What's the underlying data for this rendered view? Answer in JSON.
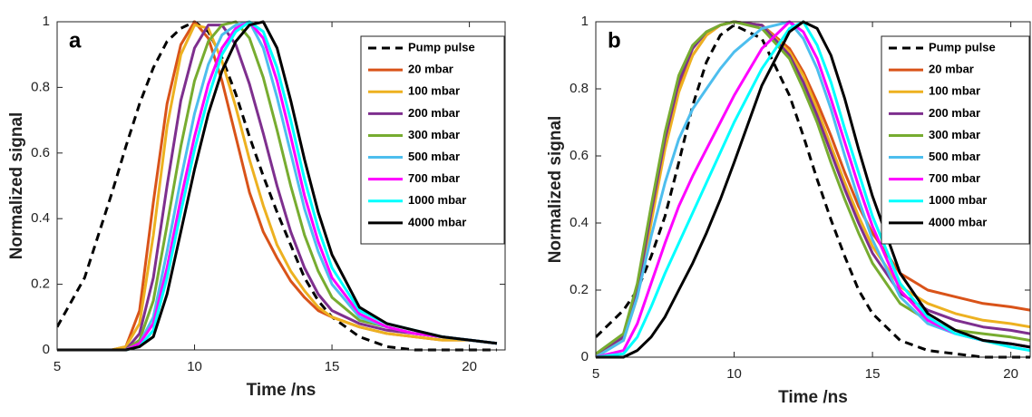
{
  "chart_data": [
    {
      "type": "line",
      "label": "a",
      "x_label": "Time /ns",
      "y_label": "Normalized signal",
      "xlim": [
        5,
        21.3
      ],
      "xticks": [
        5,
        10,
        15,
        20
      ],
      "ylim": [
        0,
        1
      ],
      "yticks": [
        0,
        0.2,
        0.4,
        0.6,
        0.8,
        1
      ],
      "legend_position": "upper right",
      "x": [
        5,
        6,
        7,
        7.5,
        8,
        8.5,
        9,
        9.5,
        10,
        10.5,
        11,
        11.5,
        12,
        12.5,
        13,
        13.5,
        14,
        14.5,
        15,
        16,
        17,
        18,
        19,
        20,
        21
      ],
      "series": [
        {
          "name": "Pump pulse",
          "color": "#000000",
          "line_style": "dashed",
          "values": [
            0.07,
            0.22,
            0.48,
            0.62,
            0.75,
            0.86,
            0.94,
            0.98,
            1.0,
            0.97,
            0.89,
            0.78,
            0.65,
            0.53,
            0.42,
            0.32,
            0.22,
            0.15,
            0.1,
            0.04,
            0.01,
            0,
            0,
            0,
            0
          ]
        },
        {
          "name": "20 mbar",
          "color": "#d95319",
          "values": [
            0,
            0,
            0,
            0.01,
            0.12,
            0.45,
            0.75,
            0.93,
            1.0,
            0.95,
            0.82,
            0.65,
            0.48,
            0.36,
            0.28,
            0.21,
            0.16,
            0.12,
            0.1,
            0.07,
            0.05,
            0.04,
            0.03,
            0.03,
            0.02
          ]
        },
        {
          "name": "100 mbar",
          "color": "#edb120",
          "values": [
            0,
            0,
            0,
            0.01,
            0.08,
            0.35,
            0.68,
            0.9,
            0.99,
            0.98,
            0.88,
            0.74,
            0.58,
            0.44,
            0.32,
            0.24,
            0.18,
            0.13,
            0.1,
            0.07,
            0.05,
            0.04,
            0.03,
            0.03,
            0.02
          ]
        },
        {
          "name": "200 mbar",
          "color": "#7e2f8e",
          "values": [
            0,
            0,
            0,
            0,
            0.05,
            0.22,
            0.5,
            0.76,
            0.92,
            0.99,
            0.99,
            0.93,
            0.81,
            0.66,
            0.5,
            0.36,
            0.25,
            0.17,
            0.12,
            0.08,
            0.06,
            0.05,
            0.04,
            0.03,
            0.02
          ]
        },
        {
          "name": "300 mbar",
          "color": "#77ac30",
          "values": [
            0,
            0,
            0,
            0,
            0.03,
            0.15,
            0.38,
            0.62,
            0.82,
            0.94,
            0.99,
            1.0,
            0.95,
            0.83,
            0.67,
            0.5,
            0.35,
            0.24,
            0.16,
            0.09,
            0.07,
            0.05,
            0.04,
            0.03,
            0.02
          ]
        },
        {
          "name": "500 mbar",
          "color": "#4dbeee",
          "values": [
            0,
            0,
            0,
            0,
            0.02,
            0.1,
            0.3,
            0.52,
            0.72,
            0.87,
            0.96,
            0.99,
            1.0,
            0.92,
            0.77,
            0.6,
            0.43,
            0.3,
            0.2,
            0.1,
            0.07,
            0.05,
            0.04,
            0.03,
            0.02
          ]
        },
        {
          "name": "700 mbar",
          "color": "#ff00ff",
          "values": [
            0,
            0,
            0,
            0,
            0.02,
            0.08,
            0.25,
            0.46,
            0.65,
            0.81,
            0.92,
            0.98,
            1.0,
            0.95,
            0.82,
            0.65,
            0.47,
            0.33,
            0.22,
            0.11,
            0.07,
            0.05,
            0.04,
            0.03,
            0.02
          ]
        },
        {
          "name": "1000 mbar",
          "color": "#00ffff",
          "values": [
            0,
            0,
            0,
            0,
            0.01,
            0.06,
            0.22,
            0.42,
            0.61,
            0.77,
            0.9,
            0.97,
            1.0,
            0.97,
            0.86,
            0.7,
            0.52,
            0.37,
            0.25,
            0.12,
            0.08,
            0.06,
            0.04,
            0.03,
            0.02
          ]
        },
        {
          "name": "4000 mbar",
          "color": "#000000",
          "values": [
            0,
            0,
            0,
            0,
            0.01,
            0.04,
            0.17,
            0.36,
            0.55,
            0.72,
            0.85,
            0.94,
            0.99,
            1.0,
            0.92,
            0.76,
            0.58,
            0.42,
            0.29,
            0.13,
            0.08,
            0.06,
            0.04,
            0.03,
            0.02
          ]
        }
      ]
    },
    {
      "type": "line",
      "label": "b",
      "x_label": "Time /ns",
      "y_label": "Normalized signal",
      "xlim": [
        5,
        20.7
      ],
      "xticks": [
        5,
        10,
        15,
        20
      ],
      "ylim": [
        0,
        1
      ],
      "yticks": [
        0,
        0.2,
        0.4,
        0.6,
        0.8,
        1
      ],
      "legend_position": "upper right",
      "x": [
        5,
        6,
        6.5,
        7,
        7.5,
        8,
        8.5,
        9,
        9.5,
        10,
        11,
        12,
        12.5,
        13,
        13.5,
        14,
        14.5,
        15,
        16,
        17,
        18,
        19,
        20,
        20.7
      ],
      "series": [
        {
          "name": "Pump pulse",
          "color": "#000000",
          "line_style": "dashed",
          "values": [
            0.06,
            0.14,
            0.2,
            0.3,
            0.42,
            0.58,
            0.75,
            0.88,
            0.96,
            0.99,
            0.95,
            0.78,
            0.66,
            0.53,
            0.41,
            0.3,
            0.2,
            0.13,
            0.05,
            0.02,
            0.01,
            0,
            0,
            0
          ]
        },
        {
          "name": "20 mbar",
          "color": "#d95319",
          "values": [
            0.01,
            0.06,
            0.2,
            0.42,
            0.64,
            0.8,
            0.9,
            0.96,
            0.99,
            1.0,
            0.99,
            0.92,
            0.85,
            0.76,
            0.66,
            0.55,
            0.45,
            0.37,
            0.25,
            0.2,
            0.18,
            0.16,
            0.15,
            0.14
          ]
        },
        {
          "name": "100 mbar",
          "color": "#edb120",
          "values": [
            0.01,
            0.05,
            0.18,
            0.4,
            0.62,
            0.79,
            0.9,
            0.96,
            0.99,
            1.0,
            0.99,
            0.91,
            0.84,
            0.74,
            0.63,
            0.52,
            0.42,
            0.33,
            0.21,
            0.16,
            0.13,
            0.11,
            0.1,
            0.09
          ]
        },
        {
          "name": "200 mbar",
          "color": "#7e2f8e",
          "values": [
            0.01,
            0.06,
            0.2,
            0.43,
            0.65,
            0.82,
            0.92,
            0.97,
            0.99,
            1.0,
            0.99,
            0.9,
            0.82,
            0.72,
            0.61,
            0.5,
            0.4,
            0.31,
            0.19,
            0.14,
            0.11,
            0.09,
            0.08,
            0.07
          ]
        },
        {
          "name": "300 mbar",
          "color": "#77ac30",
          "values": [
            0.01,
            0.07,
            0.22,
            0.45,
            0.67,
            0.84,
            0.93,
            0.97,
            0.99,
            1.0,
            0.98,
            0.89,
            0.8,
            0.7,
            0.58,
            0.47,
            0.37,
            0.28,
            0.16,
            0.11,
            0.08,
            0.07,
            0.06,
            0.05
          ]
        },
        {
          "name": "500 mbar",
          "color": "#4dbeee",
          "values": [
            0,
            0.05,
            0.18,
            0.36,
            0.52,
            0.65,
            0.74,
            0.8,
            0.86,
            0.91,
            0.98,
            1.0,
            0.95,
            0.86,
            0.74,
            0.6,
            0.47,
            0.35,
            0.18,
            0.1,
            0.07,
            0.05,
            0.04,
            0.03
          ]
        },
        {
          "name": "700 mbar",
          "color": "#ff00ff",
          "values": [
            0,
            0.02,
            0.1,
            0.22,
            0.34,
            0.45,
            0.54,
            0.62,
            0.7,
            0.78,
            0.92,
            1.0,
            0.97,
            0.89,
            0.77,
            0.64,
            0.51,
            0.39,
            0.2,
            0.11,
            0.07,
            0.05,
            0.04,
            0.03
          ]
        },
        {
          "name": "1000 mbar",
          "color": "#00ffff",
          "values": [
            0,
            0.01,
            0.06,
            0.15,
            0.25,
            0.34,
            0.43,
            0.52,
            0.61,
            0.7,
            0.86,
            0.98,
            1.0,
            0.93,
            0.82,
            0.68,
            0.55,
            0.42,
            0.22,
            0.12,
            0.07,
            0.05,
            0.03,
            0.02
          ]
        },
        {
          "name": "4000 mbar",
          "color": "#000000",
          "values": [
            0,
            0,
            0.02,
            0.06,
            0.12,
            0.2,
            0.28,
            0.37,
            0.47,
            0.58,
            0.81,
            0.97,
            1.0,
            0.98,
            0.9,
            0.77,
            0.62,
            0.48,
            0.25,
            0.13,
            0.08,
            0.05,
            0.04,
            0.03
          ]
        }
      ]
    }
  ]
}
